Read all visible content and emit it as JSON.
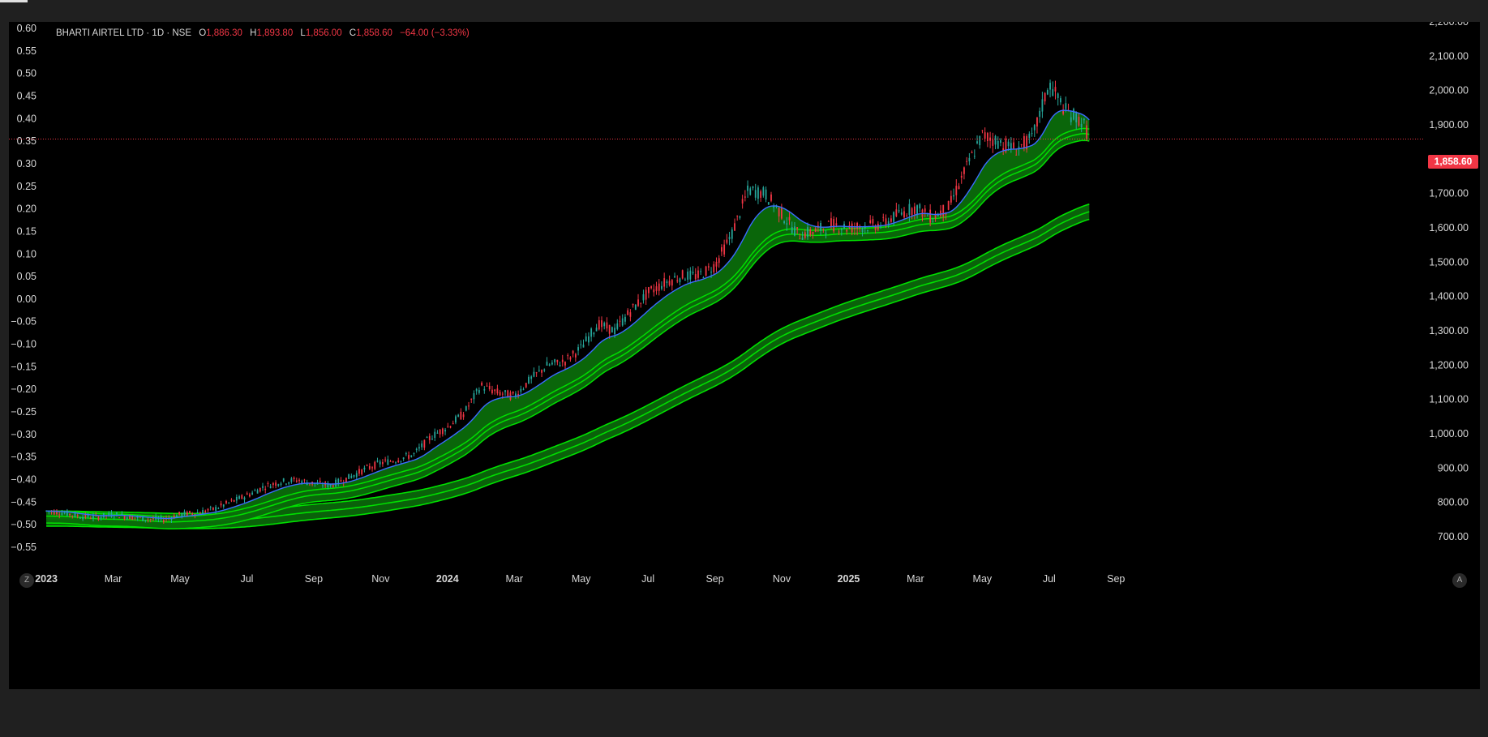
{
  "legend": {
    "symbol": "BHARTI AIRTEL LTD · 1D · NSE",
    "open_label": "O",
    "open": "1,886.30",
    "high_label": "H",
    "high": "1,893.80",
    "low_label": "L",
    "low": "1,856.00",
    "close_label": "C",
    "close": "1,858.60",
    "change": "−64.00 (−3.33%)"
  },
  "last_price_label": "1,858.60",
  "corner_left": "Z",
  "corner_right": "A",
  "colors": {
    "up": "#26a69a",
    "down": "#f23645",
    "ribbon": "#00e000",
    "ribbon_fill": "#0b6b0b",
    "fast": "#3b6cff",
    "bg": "#000000"
  },
  "chart_data": {
    "type": "line",
    "left_axis": {
      "ticks": [
        "0.60",
        "0.55",
        "0.50",
        "0.45",
        "0.40",
        "0.35",
        "0.30",
        "0.25",
        "0.20",
        "0.15",
        "0.10",
        "0.05",
        "0.00",
        "−0.05",
        "−0.10",
        "−0.15",
        "−0.20",
        "−0.25",
        "−0.30",
        "−0.35",
        "−0.40",
        "−0.45",
        "−0.50",
        "−0.55"
      ],
      "range": [
        -0.6,
        0.6
      ]
    },
    "right_axis": {
      "ticks": [
        "2,200.00",
        "2,100.00",
        "2,000.00",
        "1,900.00",
        "1,800.00",
        "1,700.00",
        "1,600.00",
        "1,500.00",
        "1,400.00",
        "1,300.00",
        "1,200.00",
        "1,100.00",
        "1,000.00",
        "900.00",
        "800.00",
        "700.00"
      ],
      "range": [
        600,
        2220
      ]
    },
    "x_ticks": [
      {
        "label": "2023",
        "t": 0.0,
        "major": true
      },
      {
        "label": "Mar",
        "t": 2.0
      },
      {
        "label": "May",
        "t": 4.0
      },
      {
        "label": "Jul",
        "t": 6.0
      },
      {
        "label": "Sep",
        "t": 8.0
      },
      {
        "label": "Nov",
        "t": 10.0
      },
      {
        "label": "2024",
        "t": 12.0,
        "major": true
      },
      {
        "label": "Mar",
        "t": 14.0
      },
      {
        "label": "May",
        "t": 16.0
      },
      {
        "label": "Jul",
        "t": 18.0
      },
      {
        "label": "Sep",
        "t": 20.0
      },
      {
        "label": "Nov",
        "t": 22.0
      },
      {
        "label": "2025",
        "t": 24.0,
        "major": true
      },
      {
        "label": "Mar",
        "t": 26.0
      },
      {
        "label": "May",
        "t": 28.0
      },
      {
        "label": "Jul",
        "t": 30.0
      },
      {
        "label": "Sep",
        "t": 32.0
      }
    ],
    "last_price": 1858.6,
    "price_series": {
      "t": [
        0,
        0.5,
        1,
        1.5,
        2,
        2.5,
        3,
        3.5,
        4,
        4.5,
        5,
        5.5,
        6,
        6.5,
        7,
        7.5,
        8,
        8.5,
        9,
        9.5,
        10,
        10.5,
        11,
        11.5,
        12,
        12.5,
        13,
        13.5,
        14,
        14.5,
        15,
        15.5,
        16,
        16.5,
        17,
        17.5,
        18,
        18.5,
        19,
        19.5,
        20,
        20.5,
        21,
        21.5,
        22,
        22.5,
        23,
        23.5,
        24,
        24.5,
        25,
        25.5,
        26,
        26.5,
        27,
        27.5,
        28,
        28.5,
        29,
        29.5,
        30,
        30.5,
        31,
        31.2
      ],
      "v": [
        775,
        770,
        760,
        757,
        765,
        758,
        752,
        750,
        765,
        770,
        780,
        800,
        820,
        845,
        860,
        865,
        855,
        850,
        870,
        895,
        915,
        925,
        940,
        990,
        1020,
        1060,
        1140,
        1120,
        1110,
        1160,
        1200,
        1210,
        1250,
        1320,
        1300,
        1360,
        1410,
        1440,
        1460,
        1460,
        1490,
        1580,
        1710,
        1700,
        1640,
        1580,
        1590,
        1610,
        1600,
        1605,
        1610,
        1640,
        1660,
        1630,
        1660,
        1770,
        1870,
        1850,
        1830,
        1860,
        2020,
        1940,
        1910,
        1860
      ]
    },
    "ribbon_fast_offsets": [
      0,
      -15,
      -35
    ],
    "ribbon_slow_offsets": [
      0,
      -22,
      -44
    ]
  }
}
